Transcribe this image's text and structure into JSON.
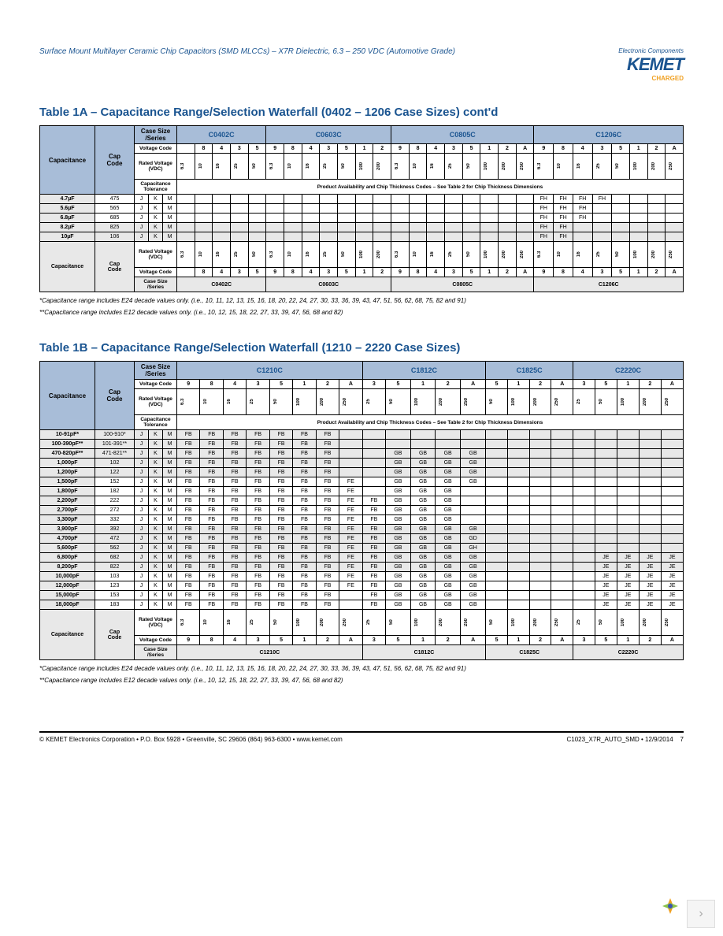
{
  "header": {
    "doc_title": "Surface Mount Multilayer Ceramic Chip Capacitors (SMD MLCCs) – X7R Dielectric, 6.3 – 250 VDC (Automotive Grade)",
    "logo_top": "Electronic Components",
    "logo_main": "KEMET",
    "logo_sub": "CHARGED"
  },
  "table1a": {
    "title": "Table 1A – Capacitance Range/Selection Waterfall (0402 – 1206 Case Sizes) cont'd",
    "capacitance_label": "Capacitance",
    "cap_code_label": "Cap\nCode",
    "case_size_label": "Case Size\n/Series",
    "voltage_code_label": "Voltage Code",
    "rated_voltage_label": "Rated Voltage\n(VDC)",
    "cap_tolerance_label": "Capacitance\nTolerance",
    "availability_label": "Product Availability and Chip Thickness Codes – See Table 2 for Chip Thickness Dimensions",
    "series": [
      "C0402C",
      "C0603C",
      "C0805C",
      "C1206C"
    ],
    "c0402_vcodes": [
      "",
      "8",
      "4",
      "3",
      "5"
    ],
    "c0402_volts": [
      "6.3",
      "10",
      "16",
      "25",
      "50"
    ],
    "c0603_vcodes": [
      "9",
      "8",
      "4",
      "3",
      "5",
      "1",
      "2"
    ],
    "c0603_volts": [
      "6.3",
      "10",
      "16",
      "25",
      "50",
      "100",
      "200"
    ],
    "c0805_vcodes": [
      "9",
      "8",
      "4",
      "3",
      "5",
      "1",
      "2",
      "A"
    ],
    "c0805_volts": [
      "6.3",
      "10",
      "16",
      "25",
      "50",
      "100",
      "200",
      "250"
    ],
    "c1206_vcodes": [
      "9",
      "8",
      "4",
      "3",
      "5",
      "1",
      "2",
      "A"
    ],
    "c1206_volts": [
      "6.3",
      "10",
      "16",
      "25",
      "50",
      "100",
      "200",
      "250"
    ],
    "rows": [
      {
        "cap": "4.7µF",
        "code": "475",
        "tol": [
          "J",
          "K",
          "M"
        ],
        "c1206": [
          "FH",
          "FH",
          "FH",
          "FH",
          "",
          "",
          "",
          ""
        ]
      },
      {
        "cap": "5.6µF",
        "code": "565",
        "tol": [
          "J",
          "K",
          "M"
        ],
        "c1206": [
          "FH",
          "FH",
          "FH",
          "",
          "",
          "",
          "",
          ""
        ]
      },
      {
        "cap": "6.8µF",
        "code": "685",
        "tol": [
          "J",
          "K",
          "M"
        ],
        "c1206": [
          "FH",
          "FH",
          "FH",
          "",
          "",
          "",
          "",
          ""
        ]
      },
      {
        "cap": "8.2µF",
        "code": "825",
        "tol": [
          "J",
          "K",
          "M"
        ],
        "c1206": [
          "FH",
          "FH",
          "",
          "",
          "",
          "",
          "",
          ""
        ],
        "gray": true
      },
      {
        "cap": "10µF",
        "code": "106",
        "tol": [
          "J",
          "K",
          "M"
        ],
        "c1206": [
          "FH",
          "FH",
          "",
          "",
          "",
          "",
          "",
          ""
        ],
        "gray": true
      }
    ]
  },
  "table1b": {
    "title": "Table 1B – Capacitance Range/Selection Waterfall (1210 – 2220 Case Sizes)",
    "series": [
      "C1210C",
      "C1812C",
      "C1825C",
      "C2220C"
    ],
    "c1210_vcodes": [
      "9",
      "8",
      "4",
      "3",
      "5",
      "1",
      "2",
      "A"
    ],
    "c1210_volts": [
      "6.3",
      "10",
      "16",
      "25",
      "50",
      "100",
      "200",
      "250"
    ],
    "c1812_vcodes": [
      "3",
      "5",
      "1",
      "2",
      "A"
    ],
    "c1812_volts": [
      "25",
      "50",
      "100",
      "200",
      "250"
    ],
    "c1825_vcodes": [
      "5",
      "1",
      "2",
      "A"
    ],
    "c1825_volts": [
      "50",
      "100",
      "200",
      "250"
    ],
    "c2220_vcodes": [
      "3",
      "5",
      "1",
      "2",
      "A"
    ],
    "c2220_volts": [
      "25",
      "50",
      "100",
      "200",
      "250"
    ],
    "rows": [
      {
        "cap": "10-91pF*",
        "code": "100-910*",
        "tol": [
          "J",
          "K",
          "M"
        ],
        "c1210": [
          "FB",
          "FB",
          "FB",
          "FB",
          "FB",
          "FB",
          "FB",
          ""
        ],
        "c1812": [
          "",
          "",
          "",
          "",
          ""
        ],
        "c1825": [
          "",
          "",
          "",
          ""
        ],
        "c2220": [
          "",
          "",
          "",
          "",
          ""
        ],
        "gray": true
      },
      {
        "cap": "100-390pF**",
        "code": "101-391**",
        "tol": [
          "J",
          "K",
          "M"
        ],
        "c1210": [
          "FB",
          "FB",
          "FB",
          "FB",
          "FB",
          "FB",
          "FB",
          ""
        ],
        "c1812": [
          "",
          "",
          "",
          "",
          ""
        ],
        "c1825": [
          "",
          "",
          "",
          ""
        ],
        "c2220": [
          "",
          "",
          "",
          "",
          ""
        ],
        "gray": true
      },
      {
        "cap": "470-820pF**",
        "code": "471-821**",
        "tol": [
          "J",
          "K",
          "M"
        ],
        "c1210": [
          "FB",
          "FB",
          "FB",
          "FB",
          "FB",
          "FB",
          "FB",
          ""
        ],
        "c1812": [
          "",
          "GB",
          "GB",
          "GB",
          "GB"
        ],
        "c1825": [
          "",
          "",
          "",
          ""
        ],
        "c2220": [
          "",
          "",
          "",
          "",
          ""
        ],
        "gray": true
      },
      {
        "cap": "1,000pF",
        "code": "102",
        "tol": [
          "J",
          "K",
          "M"
        ],
        "c1210": [
          "FB",
          "FB",
          "FB",
          "FB",
          "FB",
          "FB",
          "FB",
          ""
        ],
        "c1812": [
          "",
          "GB",
          "GB",
          "GB",
          "GB"
        ],
        "c1825": [
          "",
          "",
          "",
          ""
        ],
        "c2220": [
          "",
          "",
          "",
          "",
          ""
        ],
        "gray": true
      },
      {
        "cap": "1,200pF",
        "code": "122",
        "tol": [
          "J",
          "K",
          "M"
        ],
        "c1210": [
          "FB",
          "FB",
          "FB",
          "FB",
          "FB",
          "FB",
          "FB",
          ""
        ],
        "c1812": [
          "",
          "GB",
          "GB",
          "GB",
          "GB"
        ],
        "c1825": [
          "",
          "",
          "",
          ""
        ],
        "c2220": [
          "",
          "",
          "",
          "",
          ""
        ],
        "gray": true
      },
      {
        "cap": "1,500pF",
        "code": "152",
        "tol": [
          "J",
          "K",
          "M"
        ],
        "c1210": [
          "FB",
          "FB",
          "FB",
          "FB",
          "FB",
          "FB",
          "FB",
          "FE"
        ],
        "c1812": [
          "",
          "GB",
          "GB",
          "GB",
          "GB"
        ],
        "c1825": [
          "",
          "",
          "",
          ""
        ],
        "c2220": [
          "",
          "",
          "",
          "",
          ""
        ]
      },
      {
        "cap": "1,800pF",
        "code": "182",
        "tol": [
          "J",
          "K",
          "M"
        ],
        "c1210": [
          "FB",
          "FB",
          "FB",
          "FB",
          "FB",
          "FB",
          "FB",
          "FE"
        ],
        "c1812": [
          "",
          "GB",
          "GB",
          "GB",
          ""
        ],
        "c1825": [
          "",
          "",
          "",
          ""
        ],
        "c2220": [
          "",
          "",
          "",
          "",
          ""
        ]
      },
      {
        "cap": "2,200pF",
        "code": "222",
        "tol": [
          "J",
          "K",
          "M"
        ],
        "c1210": [
          "FB",
          "FB",
          "FB",
          "FB",
          "FB",
          "FB",
          "FB",
          "FE"
        ],
        "c1812": [
          "FB",
          "GB",
          "GB",
          "GB",
          ""
        ],
        "c1825": [
          "",
          "",
          "",
          ""
        ],
        "c2220": [
          "",
          "",
          "",
          "",
          ""
        ]
      },
      {
        "cap": "2,700pF",
        "code": "272",
        "tol": [
          "J",
          "K",
          "M"
        ],
        "c1210": [
          "FB",
          "FB",
          "FB",
          "FB",
          "FB",
          "FB",
          "FB",
          "FE"
        ],
        "c1812": [
          "FB",
          "GB",
          "GB",
          "GB",
          ""
        ],
        "c1825": [
          "",
          "",
          "",
          ""
        ],
        "c2220": [
          "",
          "",
          "",
          "",
          ""
        ]
      },
      {
        "cap": "3,300pF",
        "code": "332",
        "tol": [
          "J",
          "K",
          "M"
        ],
        "c1210": [
          "FB",
          "FB",
          "FB",
          "FB",
          "FB",
          "FB",
          "FB",
          "FE"
        ],
        "c1812": [
          "FB",
          "GB",
          "GB",
          "GB",
          ""
        ],
        "c1825": [
          "",
          "",
          "",
          ""
        ],
        "c2220": [
          "",
          "",
          "",
          "",
          ""
        ]
      },
      {
        "cap": "3,900pF",
        "code": "392",
        "tol": [
          "J",
          "K",
          "M"
        ],
        "c1210": [
          "FB",
          "FB",
          "FB",
          "FB",
          "FB",
          "FB",
          "FB",
          "FE"
        ],
        "c1812": [
          "FB",
          "GB",
          "GB",
          "GB",
          "GB"
        ],
        "c1825": [
          "",
          "",
          "",
          ""
        ],
        "c2220": [
          "",
          "",
          "",
          "",
          ""
        ],
        "gray": true
      },
      {
        "cap": "4,700pF",
        "code": "472",
        "tol": [
          "J",
          "K",
          "M"
        ],
        "c1210": [
          "FB",
          "FB",
          "FB",
          "FB",
          "FB",
          "FB",
          "FB",
          "FE"
        ],
        "c1812": [
          "FB",
          "GB",
          "GB",
          "GB",
          "GD"
        ],
        "c1825": [
          "",
          "",
          "",
          ""
        ],
        "c2220": [
          "",
          "",
          "",
          "",
          ""
        ],
        "gray": true
      },
      {
        "cap": "5,600pF",
        "code": "562",
        "tol": [
          "J",
          "K",
          "M"
        ],
        "c1210": [
          "FB",
          "FB",
          "FB",
          "FB",
          "FB",
          "FB",
          "FB",
          "FE"
        ],
        "c1812": [
          "FB",
          "GB",
          "GB",
          "GB",
          "GH"
        ],
        "c1825": [
          "",
          "",
          "",
          ""
        ],
        "c2220": [
          "",
          "",
          "",
          "",
          ""
        ],
        "gray": true
      },
      {
        "cap": "6,800pF",
        "code": "682",
        "tol": [
          "J",
          "K",
          "M"
        ],
        "c1210": [
          "FB",
          "FB",
          "FB",
          "FB",
          "FB",
          "FB",
          "FB",
          "FE"
        ],
        "c1812": [
          "FB",
          "GB",
          "GB",
          "GB",
          "GB"
        ],
        "c1825": [
          "",
          "",
          "",
          ""
        ],
        "c2220": [
          "",
          "JE",
          "JE",
          "JE",
          "JE"
        ],
        "gray": true
      },
      {
        "cap": "8,200pF",
        "code": "822",
        "tol": [
          "J",
          "K",
          "M"
        ],
        "c1210": [
          "FB",
          "FB",
          "FB",
          "FB",
          "FB",
          "FB",
          "FB",
          "FE"
        ],
        "c1812": [
          "FB",
          "GB",
          "GB",
          "GB",
          "GB"
        ],
        "c1825": [
          "",
          "",
          "",
          ""
        ],
        "c2220": [
          "",
          "JE",
          "JE",
          "JE",
          "JE"
        ],
        "gray": true
      },
      {
        "cap": "10,000pF",
        "code": "103",
        "tol": [
          "J",
          "K",
          "M"
        ],
        "c1210": [
          "FB",
          "FB",
          "FB",
          "FB",
          "FB",
          "FB",
          "FB",
          "FE"
        ],
        "c1812": [
          "FB",
          "GB",
          "GB",
          "GB",
          "GB"
        ],
        "c1825": [
          "",
          "",
          "",
          ""
        ],
        "c2220": [
          "",
          "JE",
          "JE",
          "JE",
          "JE"
        ]
      },
      {
        "cap": "12,000pF",
        "code": "123",
        "tol": [
          "J",
          "K",
          "M"
        ],
        "c1210": [
          "FB",
          "FB",
          "FB",
          "FB",
          "FB",
          "FB",
          "FB",
          "FE"
        ],
        "c1812": [
          "FB",
          "GB",
          "GB",
          "GB",
          "GB"
        ],
        "c1825": [
          "",
          "",
          "",
          ""
        ],
        "c2220": [
          "",
          "JE",
          "JE",
          "JE",
          "JE"
        ]
      },
      {
        "cap": "15,000pF",
        "code": "153",
        "tol": [
          "J",
          "K",
          "M"
        ],
        "c1210": [
          "FB",
          "FB",
          "FB",
          "FB",
          "FB",
          "FB",
          "FB",
          ""
        ],
        "c1812": [
          "FB",
          "GB",
          "GB",
          "GB",
          "GB"
        ],
        "c1825": [
          "",
          "",
          "",
          ""
        ],
        "c2220": [
          "",
          "JE",
          "JE",
          "JE",
          "JE"
        ]
      },
      {
        "cap": "18,000pF",
        "code": "183",
        "tol": [
          "J",
          "K",
          "M"
        ],
        "c1210": [
          "FB",
          "FB",
          "FB",
          "FB",
          "FB",
          "FB",
          "FB",
          ""
        ],
        "c1812": [
          "FB",
          "GB",
          "GB",
          "GB",
          "GB"
        ],
        "c1825": [
          "",
          "",
          "",
          ""
        ],
        "c2220": [
          "",
          "JE",
          "JE",
          "JE",
          "JE"
        ]
      }
    ]
  },
  "footnotes": {
    "note1": "*Capacitance range includes E24 decade values only. (i.e., 10, 11, 12, 13, 15, 16, 18, 20, 22, 24, 27, 30, 33, 36, 39, 43, 47, 51, 56, 62, 68, 75, 82 and 91)",
    "note2": "**Capacitance range includes E12 decade values only. (i.e., 10, 12, 15, 18, 22, 27, 33, 39, 47, 56, 68 and 82)"
  },
  "footer": {
    "left": "© KEMET Electronics Corporation • P.O. Box 5928 • Greenville, SC 29606 (864) 963-6300 • www.kemet.com",
    "right": "C1023_X7R_AUTO_SMD • 12/9/2014",
    "page": "7"
  }
}
